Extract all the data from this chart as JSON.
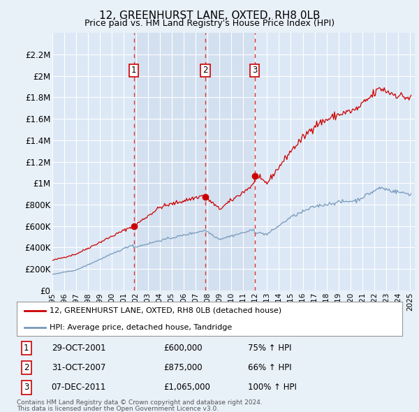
{
  "title": "12, GREENHURST LANE, OXTED, RH8 0LB",
  "subtitle": "Price paid vs. HM Land Registry's House Price Index (HPI)",
  "background_color": "#e8f0f8",
  "plot_bg_color": "#dce8f5",
  "shaded_bg_color": "#ccdaed",
  "grid_color": "#ffffff",
  "ylabel": "",
  "ylim": [
    0,
    2400000
  ],
  "yticks": [
    0,
    200000,
    400000,
    600000,
    800000,
    1000000,
    1200000,
    1400000,
    1600000,
    1800000,
    2000000,
    2200000
  ],
  "ytick_labels": [
    "£0",
    "£200K",
    "£400K",
    "£600K",
    "£800K",
    "£1M",
    "£1.2M",
    "£1.4M",
    "£1.6M",
    "£1.8M",
    "£2M",
    "£2.2M"
  ],
  "sale_prices": [
    600000,
    875000,
    1065000
  ],
  "sale_labels": [
    "1",
    "2",
    "3"
  ],
  "sale_date_strs": [
    "29-OCT-2001",
    "31-OCT-2007",
    "07-DEC-2011"
  ],
  "sale_pct": [
    "75%",
    "66%",
    "100%"
  ],
  "legend_line1": "12, GREENHURST LANE, OXTED, RH8 0LB (detached house)",
  "legend_line2": "HPI: Average price, detached house, Tandridge",
  "footer1": "Contains HM Land Registry data © Crown copyright and database right 2024.",
  "footer2": "This data is licensed under the Open Government Licence v3.0.",
  "line_color_red": "#cc0000",
  "line_color_blue": "#7799bb",
  "marker_color_red": "#cc0000",
  "dashed_line_color": "#dd3333",
  "box_edge_color": "#cc0000"
}
